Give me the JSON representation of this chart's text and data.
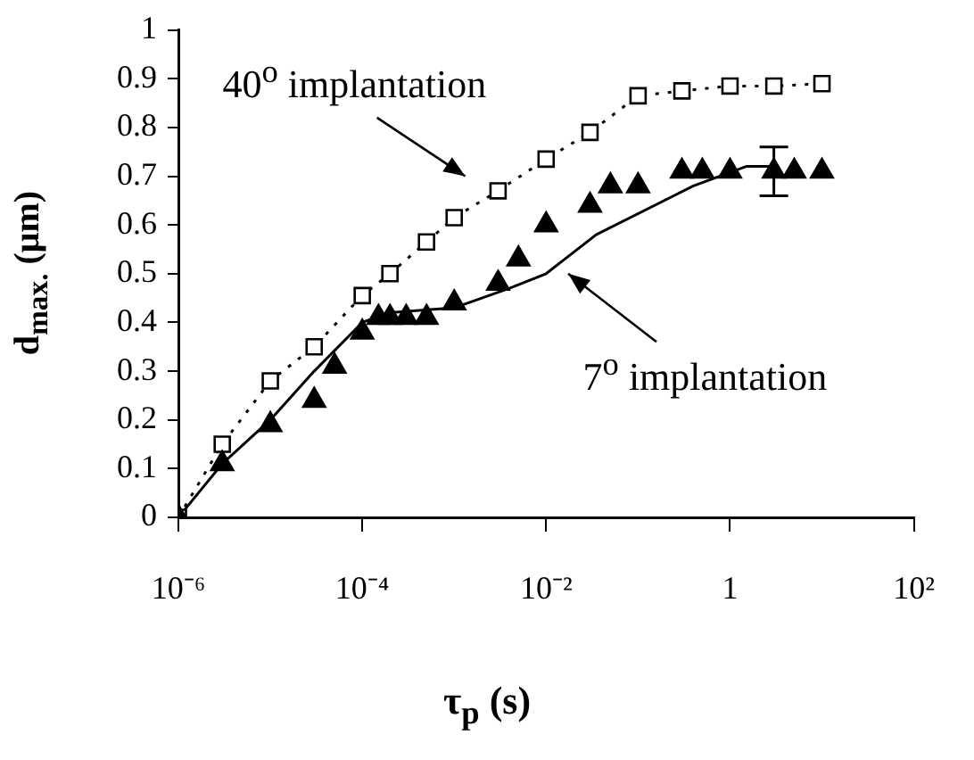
{
  "chart_data": {
    "type": "scatter",
    "xlabel": "τ$_{p}$ (s)",
    "ylabel": "d$_{max.}$ (μm)",
    "log": "x",
    "grid": false,
    "legend": false,
    "xlim": [
      1e-06,
      100
    ],
    "xticks": [
      {
        "value": 1e-06,
        "label": "10⁻⁶"
      },
      {
        "value": 0.0001,
        "label": "10⁻⁴"
      },
      {
        "value": 0.01,
        "label": "10⁻²"
      },
      1,
      {
        "value": 100,
        "label": "10²"
      }
    ],
    "ylim": [
      0,
      1
    ],
    "yticks": [
      0,
      0.1,
      0.2,
      0.3,
      0.4,
      0.5,
      0.6,
      0.7,
      0.8,
      0.9,
      1
    ],
    "series": [
      {
        "type": "line",
        "color": "#000000",
        "marker": "none",
        "line_style": "solid",
        "x": [
          1e-06,
          3e-06,
          1e-05,
          3e-05,
          0.0001,
          0.0002,
          0.001,
          0.004,
          0.01,
          0.016,
          0.035,
          0.4,
          1.5,
          3
        ],
        "values": [
          0,
          0.11,
          0.2,
          0.3,
          0.4,
          0.42,
          0.43,
          0.47,
          0.5,
          0.53,
          0.58,
          0.68,
          0.72,
          0.72
        ]
      },
      {
        "type": "line",
        "color": "#000000",
        "marker": "square",
        "line_style": "dotted",
        "x": [
          1e-06,
          3e-06,
          1e-05,
          3e-05,
          0.0001,
          0.0002,
          0.0005,
          0.001,
          0.003,
          0.01,
          0.03,
          0.1,
          0.3,
          1,
          3,
          10
        ],
        "values": [
          0,
          0.15,
          0.28,
          0.35,
          0.455,
          0.5,
          0.565,
          0.615,
          0.67,
          0.735,
          0.79,
          0.865,
          0.875,
          0.885,
          0.885,
          0.89
        ]
      },
      {
        "color": "#000000",
        "marker": "triangle",
        "x": [
          1e-06,
          3e-06,
          1e-05,
          3e-05,
          5e-05,
          0.0001,
          0.00015,
          0.0002,
          0.0003,
          0.0005,
          0.001,
          0.003,
          0.005,
          0.01,
          0.03,
          0.05,
          0.1,
          0.3,
          0.5,
          1,
          3,
          5,
          10
        ],
        "values": [
          0,
          0.11,
          0.19,
          0.24,
          0.31,
          0.38,
          0.41,
          0.41,
          0.41,
          0.41,
          0.44,
          0.48,
          0.53,
          0.6,
          0.64,
          0.68,
          0.68,
          0.71,
          0.71,
          0.71,
          0.71,
          0.71,
          0.71
        ],
        "errors": [
          null,
          null,
          null,
          null,
          null,
          null,
          null,
          null,
          null,
          null,
          null,
          null,
          null,
          null,
          null,
          null,
          null,
          null,
          null,
          null,
          [
            0.66,
            0.76
          ],
          null,
          null
        ]
      }
    ],
    "annotations": [
      "40$^{o}$ implantation",
      "7$^{o}$ implantation"
    ]
  }
}
